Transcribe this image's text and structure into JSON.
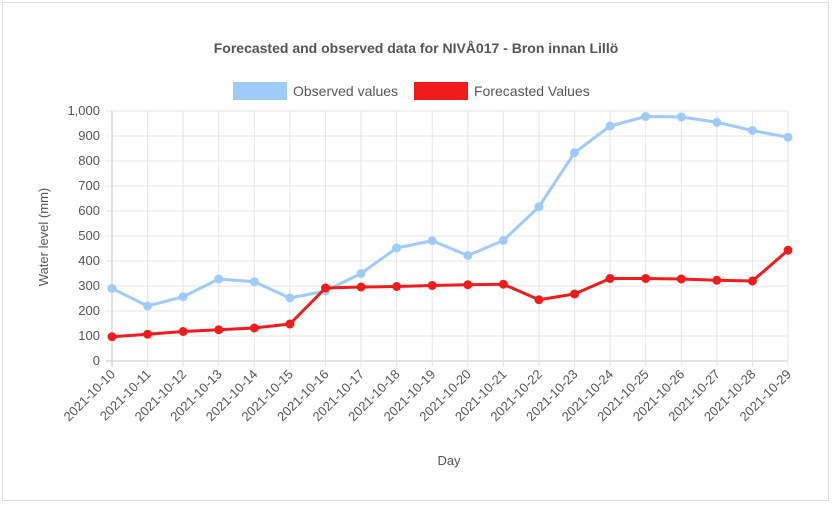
{
  "chart_data": {
    "type": "line",
    "title": "Forecasted and observed data for NIVÅ017 - Bron innan Lillö",
    "xlabel": "Day",
    "ylabel": "Water level (mm)",
    "ylim": [
      0,
      1000
    ],
    "yticks": [
      "0",
      "100",
      "200",
      "300",
      "400",
      "500",
      "600",
      "700",
      "800",
      "900",
      "1,000"
    ],
    "grid": true,
    "legend_position": "top",
    "categories": [
      "2021-10-10",
      "2021-10-11",
      "2021-10-12",
      "2021-10-13",
      "2021-10-14",
      "2021-10-15",
      "2021-10-16",
      "2021-10-17",
      "2021-10-18",
      "2021-10-19",
      "2021-10-20",
      "2021-10-21",
      "2021-10-22",
      "2021-10-23",
      "2021-10-24",
      "2021-10-25",
      "2021-10-26",
      "2021-10-27",
      "2021-10-28",
      "2021-10-29"
    ],
    "series": [
      {
        "name": "Observed values",
        "color": "#9ecbfa",
        "values": [
          290,
          220,
          257,
          328,
          317,
          252,
          280,
          350,
          452,
          481,
          422,
          482,
          617,
          833,
          940,
          978,
          976,
          955,
          922,
          895
        ]
      },
      {
        "name": "Forecasted Values",
        "color": "#f01c1c",
        "values": [
          97,
          107,
          118,
          125,
          132,
          148,
          292,
          296,
          298,
          302,
          305,
          307,
          245,
          268,
          330,
          330,
          328,
          323,
          320,
          443
        ]
      }
    ]
  }
}
